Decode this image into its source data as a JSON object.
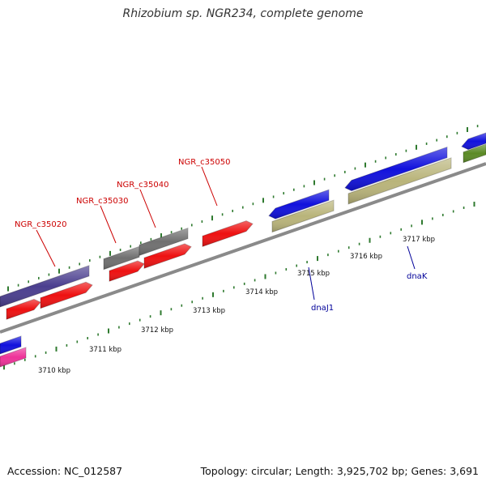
{
  "title": "Rhizobium sp. NGR234, complete genome",
  "footer": {
    "accession": "Accession: NC_012587",
    "summary": "Topology: circular; Length: 3,925,702 bp; Genes: 3,691"
  },
  "colors": {
    "backbone": "#8a8a8a",
    "tick": "#2f7a2f",
    "cds_red": "#ee1111",
    "cds_blue": "#1111dd",
    "cds_purple": "#4b3f8f",
    "cds_gray": "#707070",
    "cds_khaki": "#b9b47a",
    "cds_green": "#5b8a25",
    "cds_pink": "#ee3399",
    "label_red": "#cc0000",
    "label_blue": "#000099"
  },
  "kbp_labels": [
    "3710 kbp",
    "3711 kbp",
    "3712 kbp",
    "3713 kbp",
    "3714 kbp",
    "3715 kbp",
    "3716 kbp",
    "3717 kbp"
  ],
  "gene_labels_top": [
    "NGR_c35020",
    "NGR_c35030",
    "NGR_c35040",
    "NGR_c35050"
  ],
  "gene_labels_bottom": [
    "dnaJ1",
    "dnaK"
  ]
}
